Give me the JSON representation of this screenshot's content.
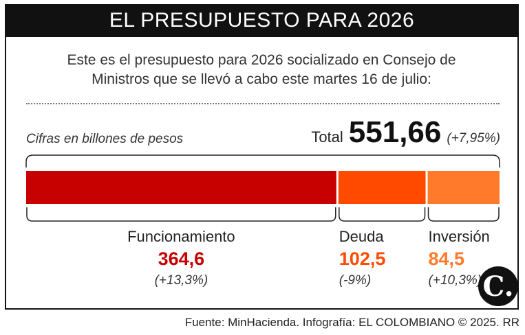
{
  "header": {
    "title": "EL PRESUPUESTO PARA 2026"
  },
  "intro": "Este es el presupuesto para 2026 socializado en Consejo de Ministros que se llevó a cabo este martes 16 de julio:",
  "units_note": "Cifras en billones de pesos",
  "total": {
    "label": "Total",
    "value": "551,66",
    "change": "(+7,95%)"
  },
  "chart_data": {
    "type": "bar",
    "title": "EL PRESUPUESTO PARA 2026",
    "subtitle": "Cifras en billones de pesos",
    "stacked": true,
    "orientation": "horizontal",
    "total": 551.66,
    "total_change": "+7,95%",
    "categories": [
      "Funcionamiento",
      "Deuda",
      "Inversión"
    ],
    "values": [
      364.6,
      102.5,
      84.5
    ],
    "value_labels": [
      "364,6",
      "102,5",
      "84,5"
    ],
    "changes": [
      "(+13,3%)",
      "(-9%)",
      "(+10,3%)"
    ],
    "colors": [
      "#c70000",
      "#ff4a00",
      "#ff7a2a"
    ]
  },
  "brand": {
    "logo_letter": "C."
  },
  "source": "Fuente: MinHacienda. Infografía: EL COLOMBIANO © 2025. RR"
}
